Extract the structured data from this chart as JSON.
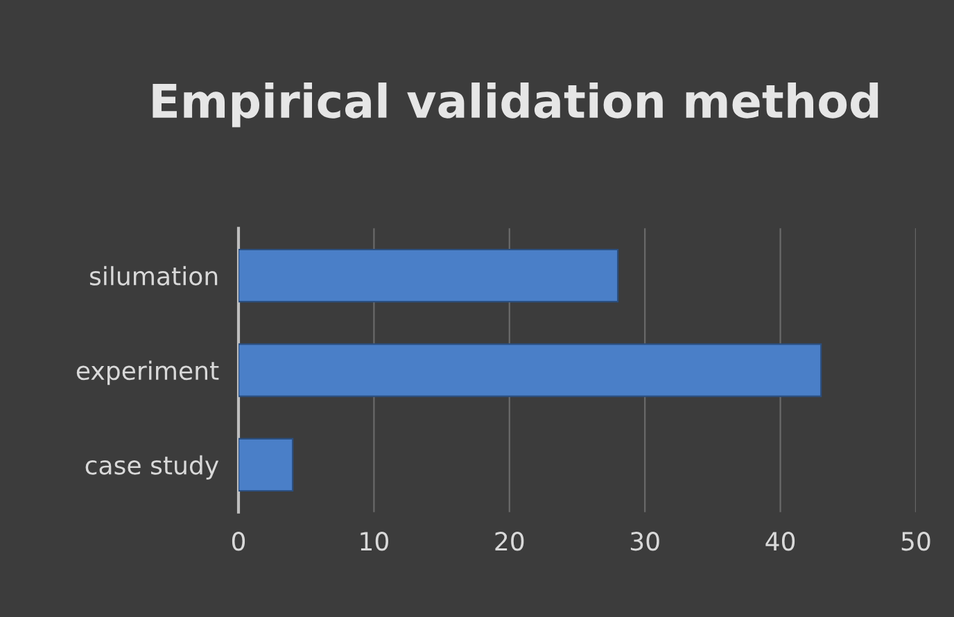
{
  "chart_data": {
    "type": "bar",
    "orientation": "horizontal",
    "title": "Empirical validation method",
    "categories": [
      "silumation",
      "experiment",
      "case study"
    ],
    "values": [
      28,
      43,
      4
    ],
    "color": "#4a7fc8",
    "xlim": [
      0,
      50
    ],
    "xticks": [
      0,
      10,
      20,
      30,
      40,
      50
    ],
    "grid": "x",
    "legend": false
  }
}
